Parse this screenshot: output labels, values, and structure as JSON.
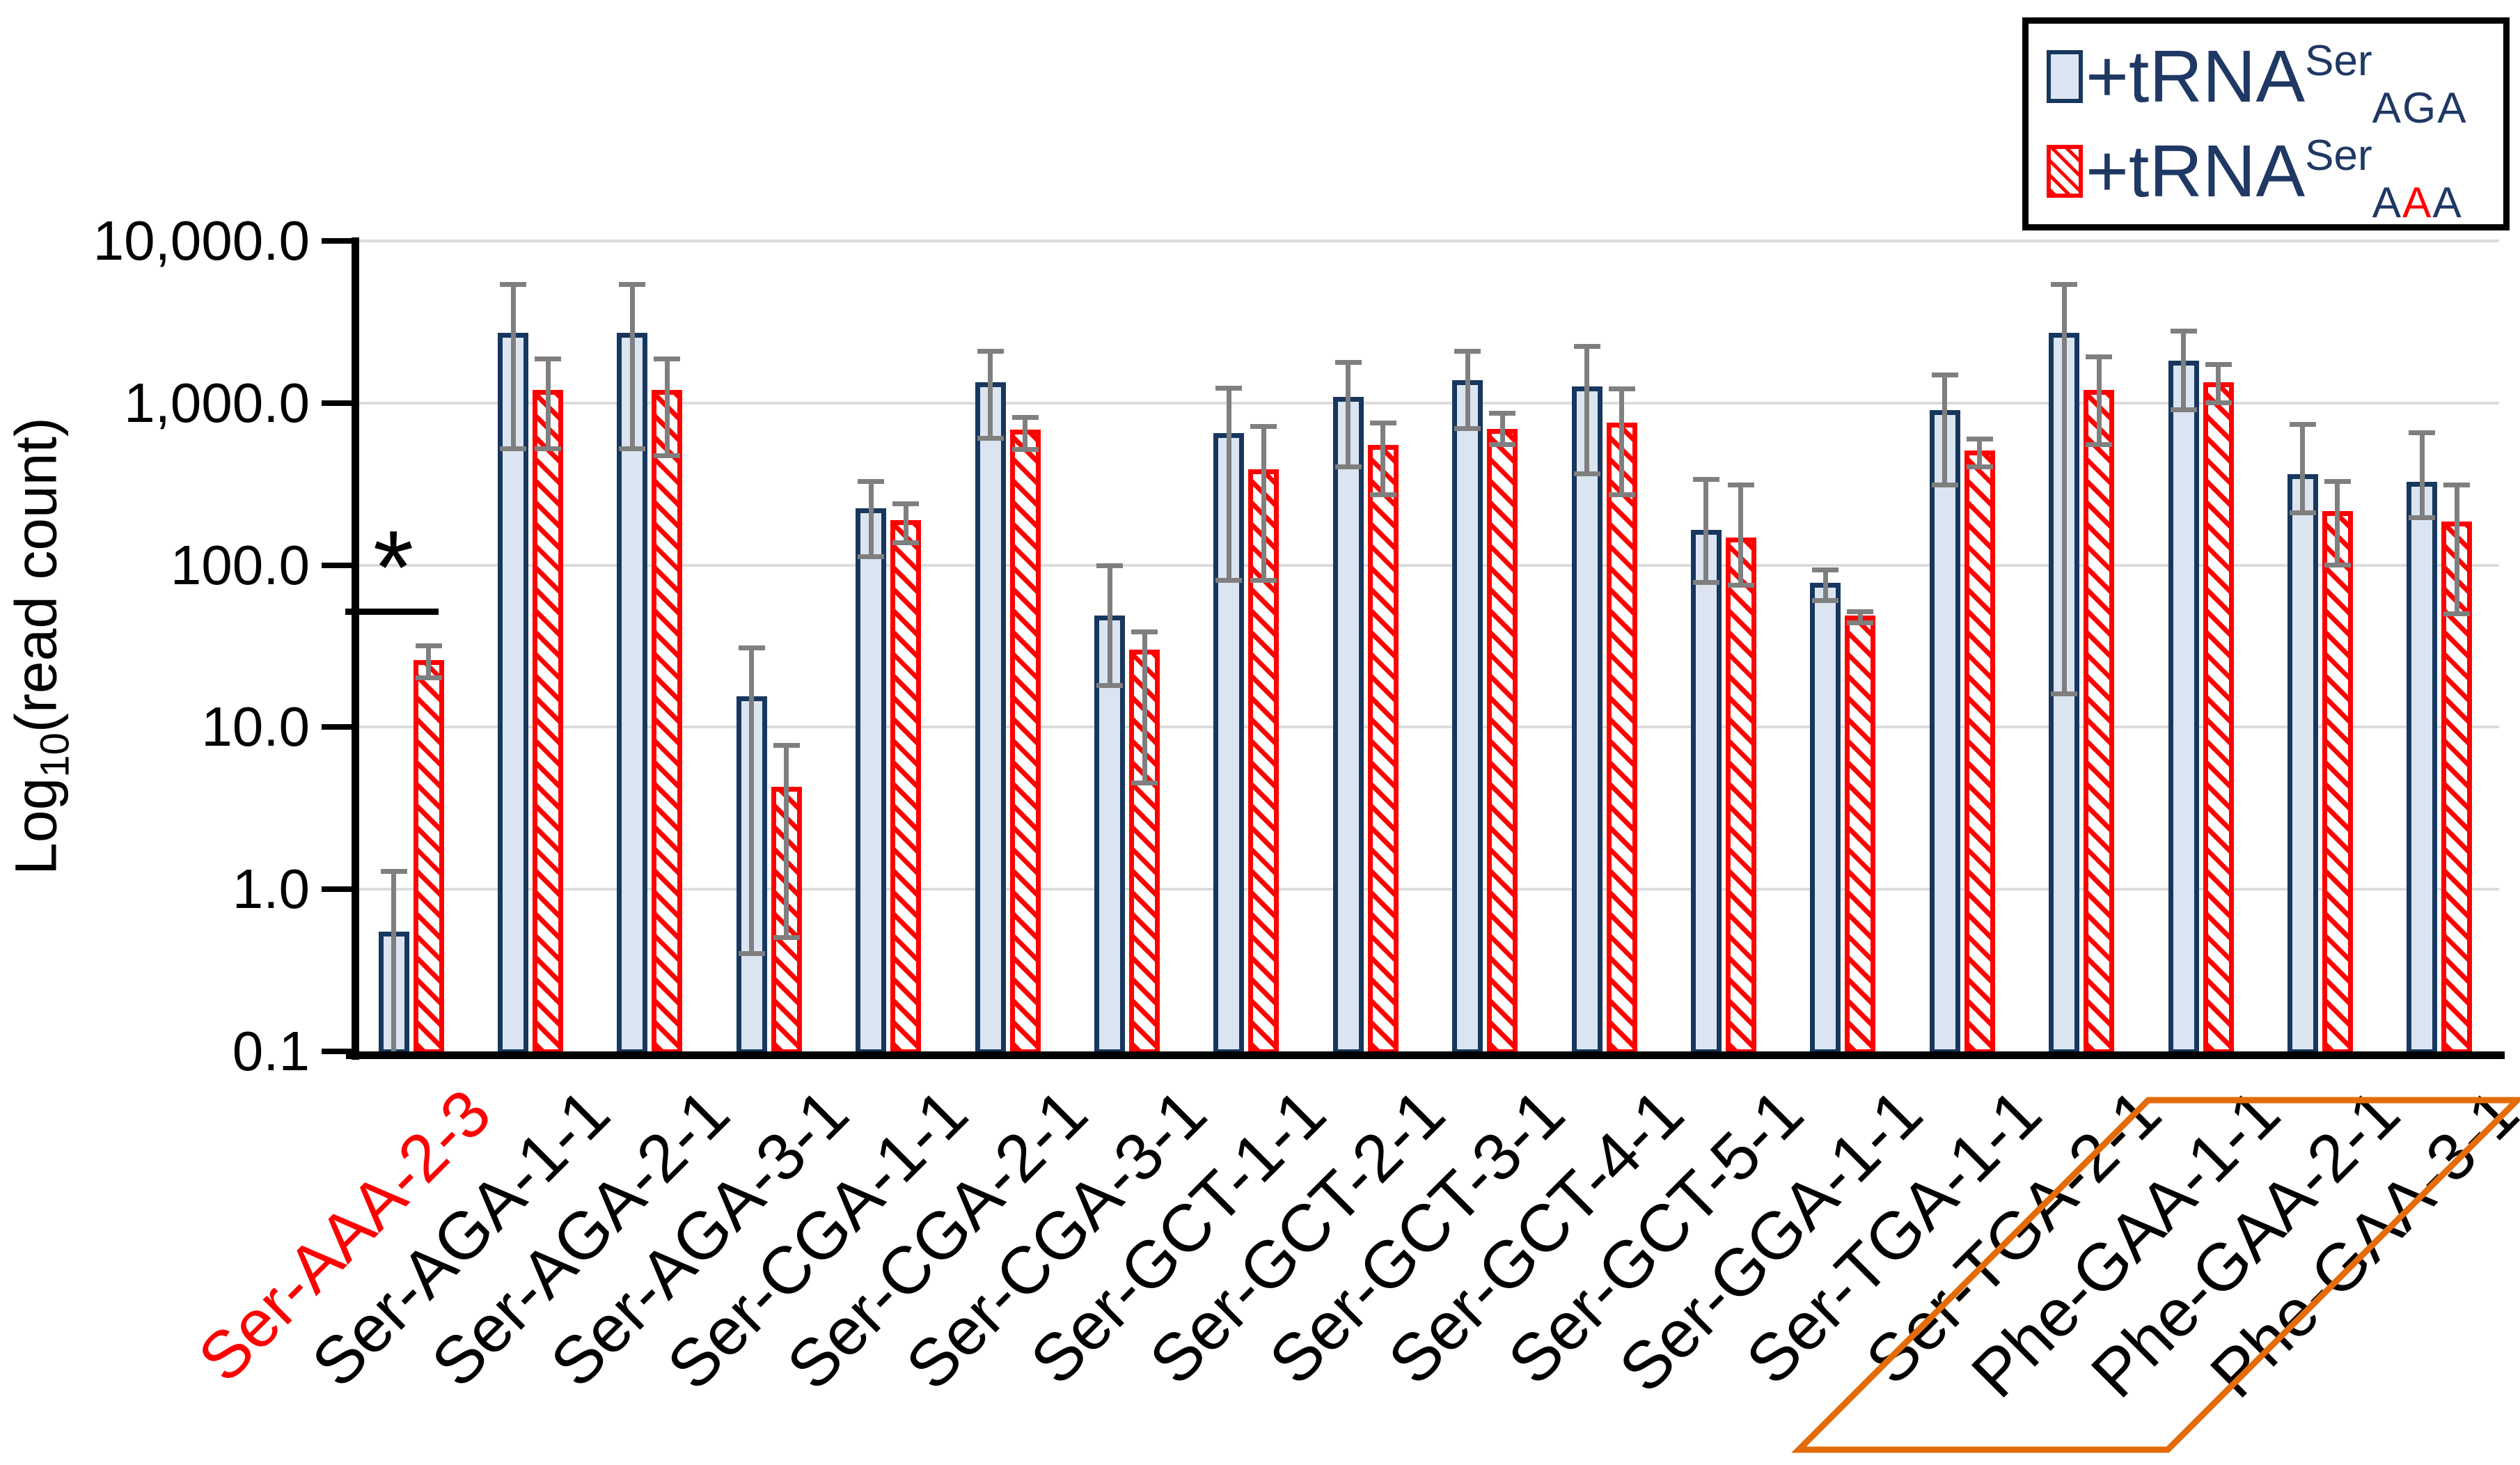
{
  "figure": {
    "background": "#ffffff"
  },
  "y_axis": {
    "title_log": "Log",
    "title_sub": "10",
    "title_rest": "(read count)",
    "ticks": [
      {
        "label": "10,000.0",
        "value": 10000
      },
      {
        "label": "1,000.0",
        "value": 1000
      },
      {
        "label": "100.0",
        "value": 100
      },
      {
        "label": "10.0",
        "value": 10
      },
      {
        "label": "1.0",
        "value": 1
      },
      {
        "label": "0.1",
        "value": 0.1
      }
    ]
  },
  "legend": {
    "entries": [
      {
        "prefix": "+tRNA",
        "sup": "Ser",
        "sub": "AGA",
        "swatch": "blue-solid-square"
      },
      {
        "prefix": "+tRNA",
        "sup": "Ser",
        "sub_parts": [
          "A",
          "A",
          "A"
        ],
        "middle_letter_color": "#ff0000",
        "swatch": "red-hatched-square"
      }
    ],
    "text_color": "#1f3864"
  },
  "significance": {
    "label": "*",
    "category": "Ser-AAA-2-3",
    "bracket_value": 52,
    "star_value": 90
  },
  "highlight_box": {
    "color": "#e36c09",
    "categories": [
      "Phe-GAA-1-1",
      "Phe-GAA-2-1",
      "Phe-GAA-3-1"
    ]
  },
  "chart_data": {
    "type": "bar",
    "yscale": "log",
    "ylim": [
      0.1,
      10000
    ],
    "ylabel": "Log10(read count)",
    "grid": true,
    "legend_position": "top-right",
    "categories": [
      "Ser-AAA-2-3",
      "Ser-AGA-1-1",
      "Ser-AGA-2-1",
      "Ser-AGA-3-1",
      "Ser-CGA-1-1",
      "Ser-CGA-2-1",
      "Ser-CGA-3-1",
      "Ser-GCT-1-1",
      "Ser-GCT-2-1",
      "Ser-GCT-3-1",
      "Ser-GCT-4-1",
      "Ser-GCT-5-1",
      "Ser-GGA-1-1",
      "Ser-TGA-1-1",
      "Ser-TGA-2-1",
      "Phe-GAA-1-1",
      "Phe-GAA-2-1",
      "Phe-GAA-3-1"
    ],
    "category_label_colors": [
      "#ff0000",
      "#000000",
      "#000000",
      "#000000",
      "#000000",
      "#000000",
      "#000000",
      "#000000",
      "#000000",
      "#000000",
      "#000000",
      "#000000",
      "#000000",
      "#000000",
      "#000000",
      "#000000",
      "#000000",
      "#000000"
    ],
    "series": [
      {
        "name": "+tRNA Ser AGA",
        "style": "blue-solid",
        "fill": "#dbe5f1",
        "border": "#17375e",
        "values": [
          0.55,
          2700,
          2700,
          15.5,
          225,
          1340,
          49,
          650,
          1090,
          1390,
          1260,
          165,
          78,
          900,
          2700,
          1830,
          365,
          325
        ],
        "err_lo": [
          0.1,
          520,
          520,
          0.4,
          112,
          600,
          18,
          80,
          400,
          690,
          365,
          78,
          60,
          310,
          16,
          900,
          210,
          195
        ],
        "err_hi": [
          1.3,
          5400,
          5400,
          31,
          330,
          2100,
          100,
          1240,
          1790,
          2090,
          2240,
          340,
          94,
          1500,
          5400,
          2780,
          740,
          660
        ]
      },
      {
        "name": "+tRNA Ser AAA",
        "style": "red-hatched",
        "fill": "#ffffff",
        "border": "#ff0000",
        "values": [
          26,
          1200,
          1200,
          4.3,
          190,
          685,
          30,
          390,
          550,
          690,
          760,
          148,
          49,
          510,
          1200,
          1340,
          215,
          185
        ],
        "err_lo": [
          20,
          520,
          470,
          0.5,
          137,
          515,
          4.5,
          80,
          270,
          550,
          270,
          75,
          44,
          400,
          550,
          1000,
          100,
          50
        ],
        "err_hi": [
          32,
          1880,
          1880,
          7.8,
          240,
          815,
          39,
          720,
          760,
          870,
          1230,
          315,
          52,
          600,
          1930,
          1730,
          330,
          315
        ]
      }
    ]
  }
}
